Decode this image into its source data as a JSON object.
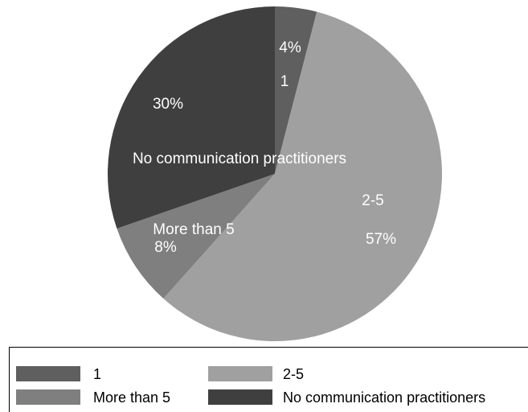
{
  "chart_data": {
    "type": "pie",
    "slices": [
      {
        "label": "1",
        "value": 4,
        "pct_label": "4%",
        "color": "#5f5f5f"
      },
      {
        "label": "2-5",
        "value": 57,
        "pct_label": "57%",
        "color": "#a0a0a0"
      },
      {
        "label": "More than 5",
        "value": 8,
        "pct_label": "8%",
        "color": "#7f7f7f"
      },
      {
        "label": "No communication practitioners",
        "value": 30,
        "pct_label": "30%",
        "color": "#3f3f3f"
      }
    ],
    "legend": {
      "entries": [
        {
          "label": "1",
          "color": "#5f5f5f"
        },
        {
          "label": "2-5",
          "color": "#a0a0a0"
        },
        {
          "label": "More than 5",
          "color": "#7f7f7f"
        },
        {
          "label": "No communication practitioners",
          "color": "#3f3f3f"
        }
      ],
      "placement": "bottom"
    }
  }
}
